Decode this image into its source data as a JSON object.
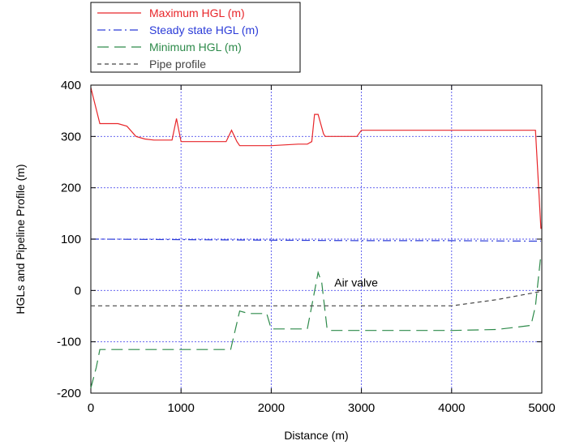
{
  "chart_data": {
    "type": "line",
    "xlabel": "Distance (m)",
    "ylabel": "HGLs and Pipeline Profile (m)",
    "xlim": [
      0,
      5000
    ],
    "ylim": [
      -200,
      400
    ],
    "xticks": [
      0,
      1000,
      2000,
      3000,
      4000,
      5000
    ],
    "yticks": [
      -200,
      -100,
      0,
      100,
      200,
      300,
      400
    ],
    "grid": true,
    "legend_position": "top-left, outside plot",
    "annotations": [
      {
        "text": "Air valve",
        "x": 2700,
        "y": 8
      }
    ],
    "series": [
      {
        "name": "Maximum HGL (m)",
        "color": "#e8262a",
        "style": "solid",
        "x": [
          0,
          100,
          300,
          400,
          500,
          600,
          700,
          900,
          950,
          1000,
          1100,
          1500,
          1560,
          1620,
          1650,
          1700,
          2000,
          2300,
          2350,
          2400,
          2450,
          2480,
          2520,
          2580,
          2600,
          2950,
          3000,
          4000,
          4900,
          4930,
          4990
        ],
        "y": [
          395,
          325,
          325,
          320,
          300,
          295,
          293,
          293,
          335,
          290,
          290,
          290,
          312,
          290,
          282,
          282,
          282,
          285,
          285,
          285,
          290,
          343,
          343,
          305,
          300,
          300,
          312,
          312,
          312,
          312,
          120
        ]
      },
      {
        "name": "Steady state HGL (m)",
        "color": "#2b3bd8",
        "style": "dash-dot",
        "x": [
          0,
          100,
          1000,
          2000,
          3000,
          4000,
          4900,
          4990
        ],
        "y": [
          100,
          100,
          99,
          98,
          97,
          97,
          96,
          96
        ]
      },
      {
        "name": "Minimum HGL (m)",
        "color": "#2d8a4a",
        "style": "long-dash",
        "x": [
          0,
          60,
          100,
          1000,
          1500,
          1550,
          1650,
          1750,
          1900,
          1950,
          2000,
          2100,
          2400,
          2450,
          2520,
          2560,
          2620,
          2650,
          3000,
          4000,
          4500,
          4700,
          4880,
          4930,
          4990
        ],
        "y": [
          -190,
          -150,
          -115,
          -115,
          -115,
          -115,
          -40,
          -45,
          -45,
          -45,
          -75,
          -75,
          -75,
          -30,
          35,
          15,
          -75,
          -78,
          -78,
          -78,
          -76,
          -72,
          -68,
          -30,
          70
        ]
      },
      {
        "name": "Pipe profile",
        "color": "#444444",
        "style": "dotted",
        "x": [
          0,
          1000,
          2000,
          3000,
          3900,
          4000,
          4500,
          4990
        ],
        "y": [
          -30,
          -30,
          -30,
          -30,
          -30,
          -30,
          -18,
          -2
        ]
      }
    ]
  }
}
